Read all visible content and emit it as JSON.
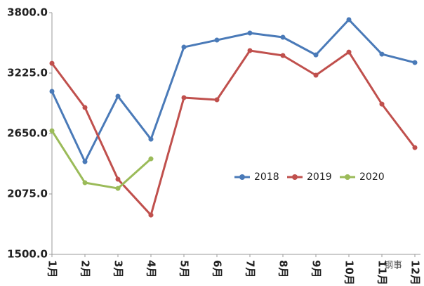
{
  "chart_data": {
    "type": "line",
    "categories": [
      "1月",
      "2月",
      "3月",
      "4月",
      "5月",
      "6月",
      "7月",
      "8月",
      "9月",
      "10月",
      "11月",
      "12月"
    ],
    "series": [
      {
        "name": "2018",
        "color": "#4a7ab8",
        "values": [
          3051,
          2382,
          3004,
          2596,
          3472,
          3539,
          3606,
          3566,
          3398,
          3733,
          3405,
          3325
        ]
      },
      {
        "name": "2019",
        "color": "#c0504d",
        "values": [
          3318,
          2897,
          2215,
          1874,
          2991,
          2971,
          3439,
          3392,
          3205,
          3425,
          2930,
          2516
        ]
      },
      {
        "name": "2020",
        "color": "#9bbb59",
        "values": [
          2676,
          2182,
          2128,
          2409,
          null,
          null,
          null,
          null,
          null,
          null,
          null,
          null
        ]
      }
    ],
    "ylim": [
      1500,
      3800
    ],
    "yticks": [
      {
        "value": 1500,
        "label": "1500.0"
      },
      {
        "value": 2075,
        "label": "2075.0"
      },
      {
        "value": 2650,
        "label": "2650.0"
      },
      {
        "value": 3225,
        "label": "3225.0"
      },
      {
        "value": 3800,
        "label": "3800.0"
      }
    ],
    "grid": false,
    "watermark": "钢事"
  }
}
